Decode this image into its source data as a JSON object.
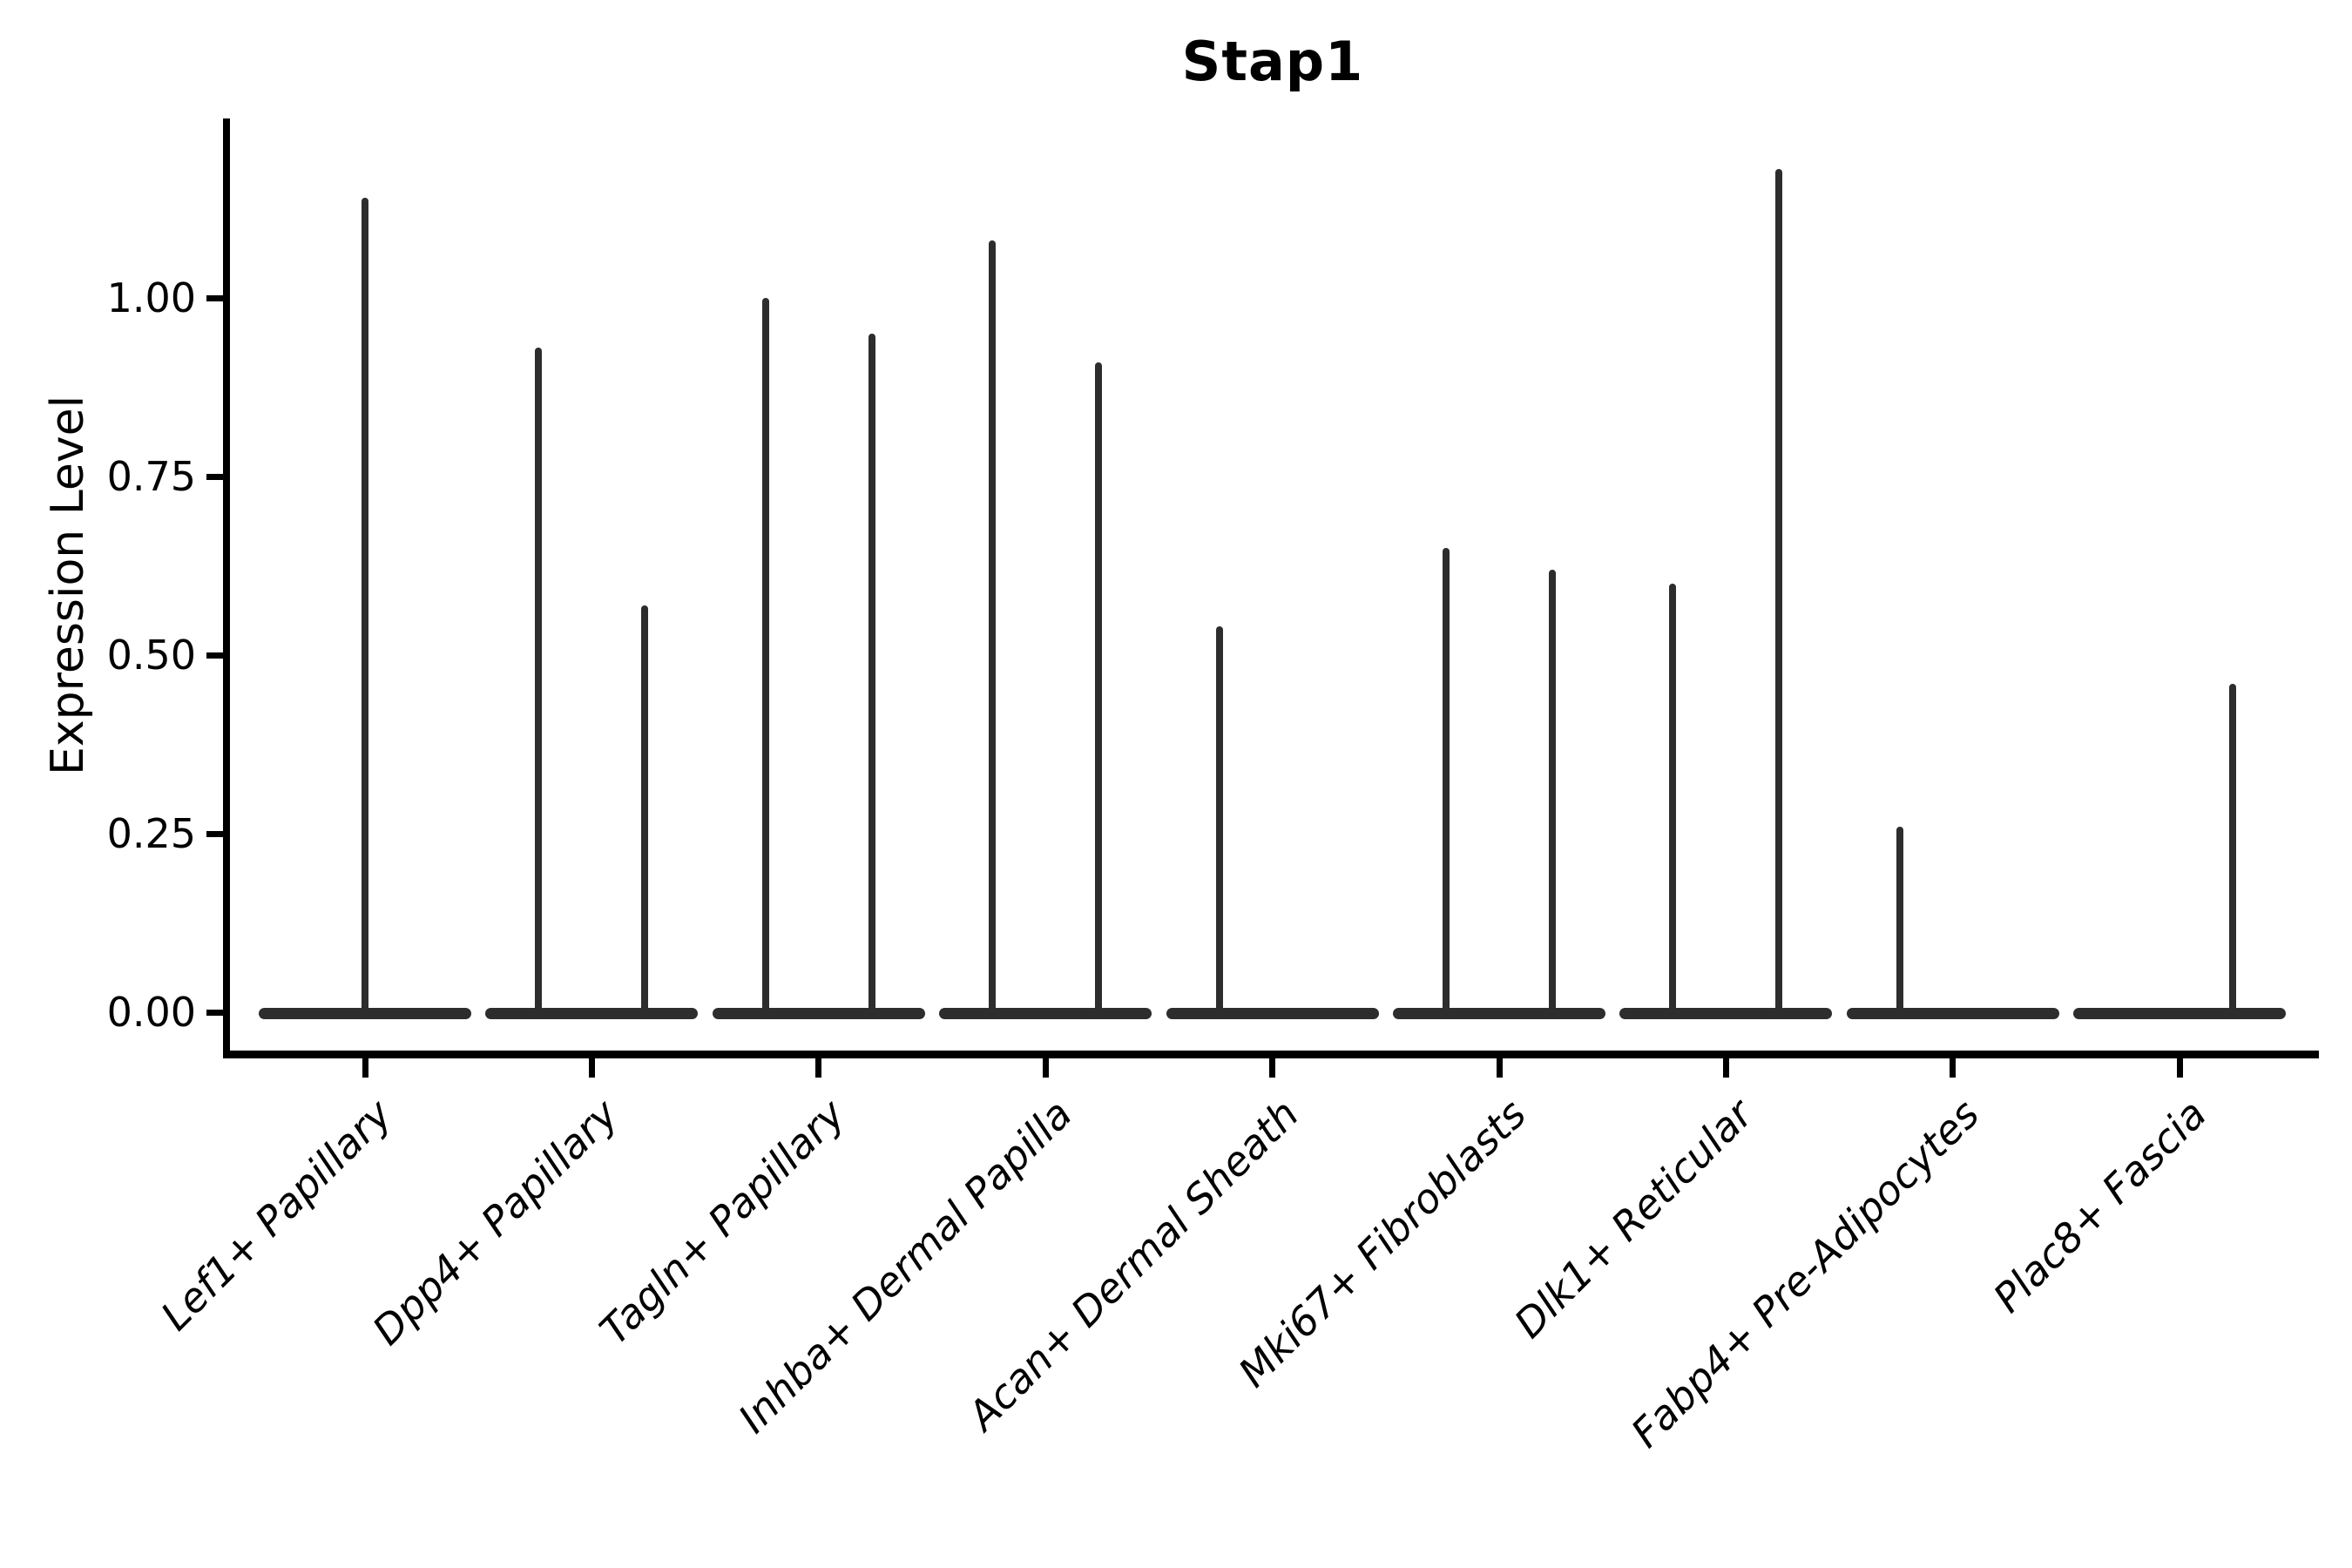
{
  "figure": {
    "title": "Stap1",
    "y_axis": {
      "label": "Expression Level",
      "tick_labels": [
        "0.00",
        "0.25",
        "0.50",
        "0.75",
        "1.00"
      ],
      "tick_values": [
        0,
        0.25,
        0.5,
        0.75,
        1.0
      ]
    },
    "colors": {
      "background": "#ffffff",
      "axis": "#000000",
      "text": "#000000",
      "violin": "#2d2d2d"
    }
  },
  "chart_data": {
    "type": "violin",
    "title": "Stap1",
    "xlabel": "",
    "ylabel": "Expression Level",
    "ylim": [
      -0.06,
      1.25
    ],
    "yticks": [
      0,
      0.25,
      0.5,
      0.75,
      1.0
    ],
    "grid": false,
    "legend": "none",
    "categories": [
      "Lef1+ Papillary",
      "Dpp4+ Papillary",
      "Tagln+ Papillary",
      "Inhba+ Dermal Papilla",
      "Acan+ Dermal Sheath",
      "Mki67+ Fibroblasts",
      "Dlk1+ Reticular",
      "Fabp4+ Pre-Adipocytes",
      "Plac8+ Fascia"
    ],
    "violins": [
      {
        "category": "Lef1+ Papillary",
        "baseline": 0,
        "spikes": [
          {
            "position": "center",
            "max": 1.14
          }
        ]
      },
      {
        "category": "Dpp4+ Papillary",
        "baseline": 0,
        "spikes": [
          {
            "position": "left",
            "max": 0.93
          },
          {
            "position": "right",
            "max": 0.57
          }
        ]
      },
      {
        "category": "Tagln+ Papillary",
        "baseline": 0,
        "spikes": [
          {
            "position": "left",
            "max": 1.0
          },
          {
            "position": "right",
            "max": 0.95
          }
        ]
      },
      {
        "category": "Inhba+ Dermal Papilla",
        "baseline": 0,
        "spikes": [
          {
            "position": "left",
            "max": 1.08
          },
          {
            "position": "right",
            "max": 0.91
          }
        ]
      },
      {
        "category": "Acan+ Dermal Sheath",
        "baseline": 0,
        "spikes": [
          {
            "position": "left",
            "max": 0.54
          }
        ]
      },
      {
        "category": "Mki67+ Fibroblasts",
        "baseline": 0,
        "spikes": [
          {
            "position": "left",
            "max": 0.65
          },
          {
            "position": "right",
            "max": 0.62
          }
        ]
      },
      {
        "category": "Dlk1+ Reticular",
        "baseline": 0,
        "spikes": [
          {
            "position": "left",
            "max": 0.6
          },
          {
            "position": "right",
            "max": 1.18
          }
        ]
      },
      {
        "category": "Fabp4+ Pre-Adipocytes",
        "baseline": 0,
        "spikes": [
          {
            "position": "left",
            "max": 0.26
          }
        ]
      },
      {
        "category": "Plac8+ Fascia",
        "baseline": 0,
        "spikes": [
          {
            "position": "right",
            "max": 0.46
          }
        ]
      }
    ]
  }
}
